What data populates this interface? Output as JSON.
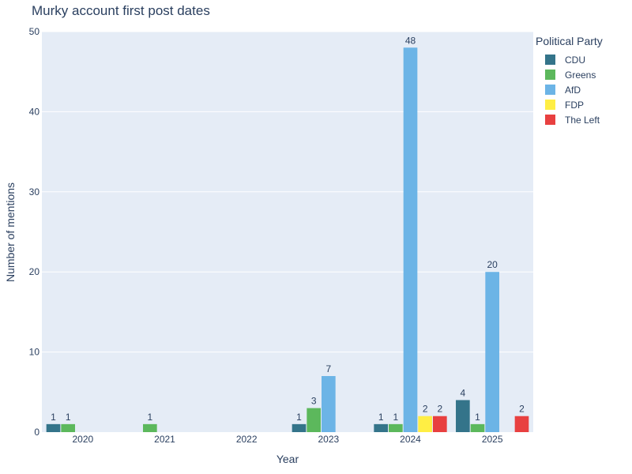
{
  "chart_data": {
    "type": "bar",
    "title": "Murky account first post dates",
    "xlabel": "Year",
    "ylabel": "Number of mentions",
    "ylim": [
      0,
      50
    ],
    "yticks": [
      0,
      10,
      20,
      30,
      40,
      50
    ],
    "categories": [
      "2020",
      "2021",
      "2022",
      "2023",
      "2024",
      "2025"
    ],
    "legend_title": "Political Party",
    "legend_position": "top-right",
    "grid": true,
    "series": [
      {
        "name": "CDU",
        "color": "#34748a",
        "values": [
          1,
          null,
          null,
          1,
          1,
          4
        ]
      },
      {
        "name": "Greens",
        "color": "#5cb85c",
        "values": [
          1,
          1,
          null,
          3,
          1,
          1
        ]
      },
      {
        "name": "AfD",
        "color": "#6cb4e6",
        "values": [
          null,
          null,
          null,
          7,
          48,
          20
        ]
      },
      {
        "name": "FDP",
        "color": "#ffee44",
        "values": [
          null,
          null,
          null,
          null,
          2,
          null
        ]
      },
      {
        "name": "The Left",
        "color": "#e84040",
        "values": [
          null,
          null,
          null,
          null,
          2,
          2
        ]
      }
    ]
  }
}
